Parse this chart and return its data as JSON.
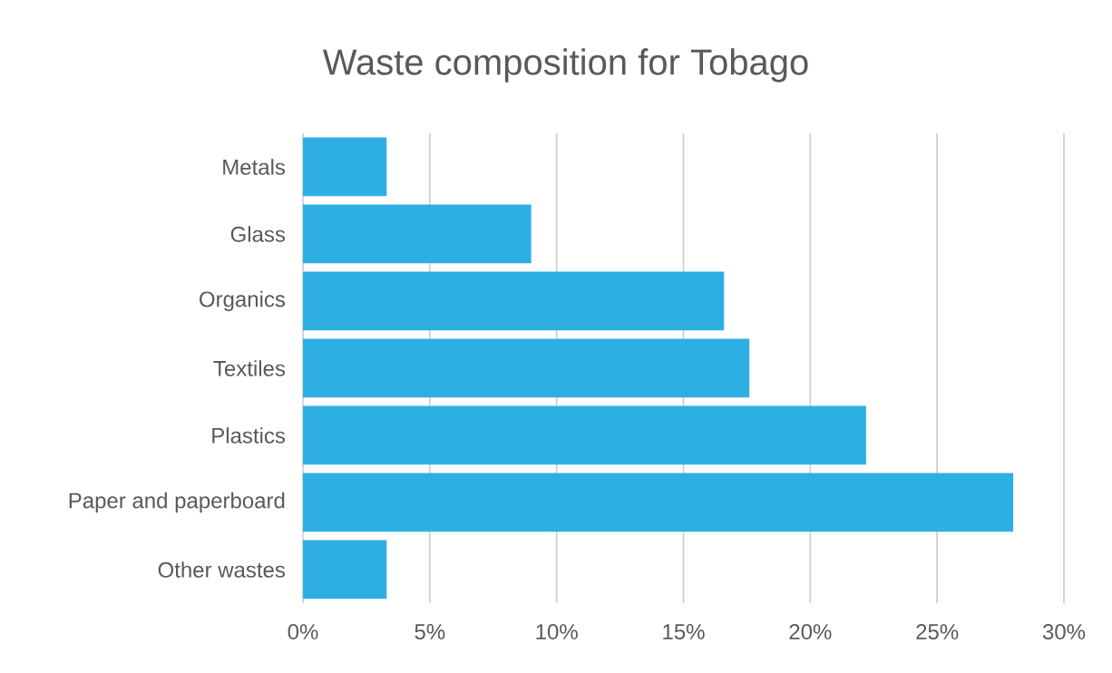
{
  "chart_data": {
    "type": "bar",
    "orientation": "horizontal",
    "title": "Waste composition for Tobago",
    "categories": [
      "Metals",
      "Glass",
      "Organics",
      "Textiles",
      "Plastics",
      "Paper and paperboard",
      "Other wastes"
    ],
    "values": [
      3.3,
      9.0,
      16.6,
      17.6,
      22.2,
      28.0,
      3.3
    ],
    "color": "#2eafe3",
    "xlim": [
      0,
      30
    ],
    "xticks": [
      {
        "value": 0,
        "label": "0%"
      },
      {
        "value": 5,
        "label": "5%"
      },
      {
        "value": 10,
        "label": "10%"
      },
      {
        "value": 15,
        "label": "15%"
      },
      {
        "value": 20,
        "label": "20%"
      },
      {
        "value": 25,
        "label": "25%"
      },
      {
        "value": 30,
        "label": "30%"
      }
    ],
    "grid": "x"
  }
}
